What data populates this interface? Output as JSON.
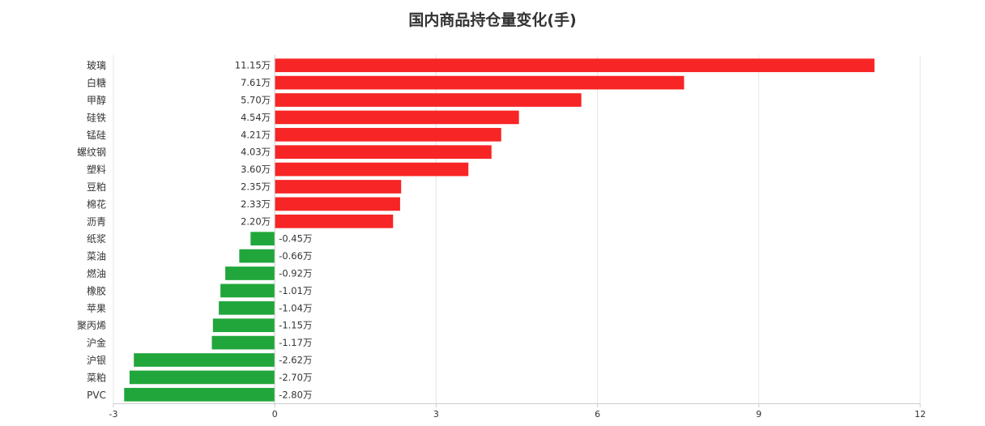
{
  "chart_data": {
    "type": "bar",
    "orientation": "horizontal",
    "title": "国内商品持仓量变化(手)",
    "categories": [
      "玻璃",
      "白糖",
      "甲醇",
      "硅铁",
      "锰硅",
      "螺纹钢",
      "塑料",
      "豆粕",
      "棉花",
      "沥青",
      "纸浆",
      "菜油",
      "燃油",
      "橡胶",
      "苹果",
      "聚丙烯",
      "沪金",
      "沪银",
      "菜粕",
      "PVC"
    ],
    "values": [
      11.15,
      7.61,
      5.7,
      4.54,
      4.21,
      4.03,
      3.6,
      2.35,
      2.33,
      2.2,
      -0.45,
      -0.66,
      -0.92,
      -1.01,
      -1.04,
      -1.15,
      -1.17,
      -2.62,
      -2.7,
      -2.8
    ],
    "value_labels": [
      "11.15万",
      "7.61万",
      "5.70万",
      "4.54万",
      "4.21万",
      "4.03万",
      "3.60万",
      "2.35万",
      "2.33万",
      "2.20万",
      "-0.45万",
      "-0.66万",
      "-0.92万",
      "-1.01万",
      "-1.04万",
      "-1.15万",
      "-1.17万",
      "-2.62万",
      "-2.70万",
      "-2.80万"
    ],
    "xlim": [
      -3,
      12
    ],
    "xticks": [
      -3,
      0,
      3,
      6,
      9,
      12
    ],
    "grid": true,
    "colors": {
      "positive": "#f72525",
      "negative": "#21a63b",
      "grid": "#e6e6e6",
      "axis": "#cccccc"
    }
  }
}
